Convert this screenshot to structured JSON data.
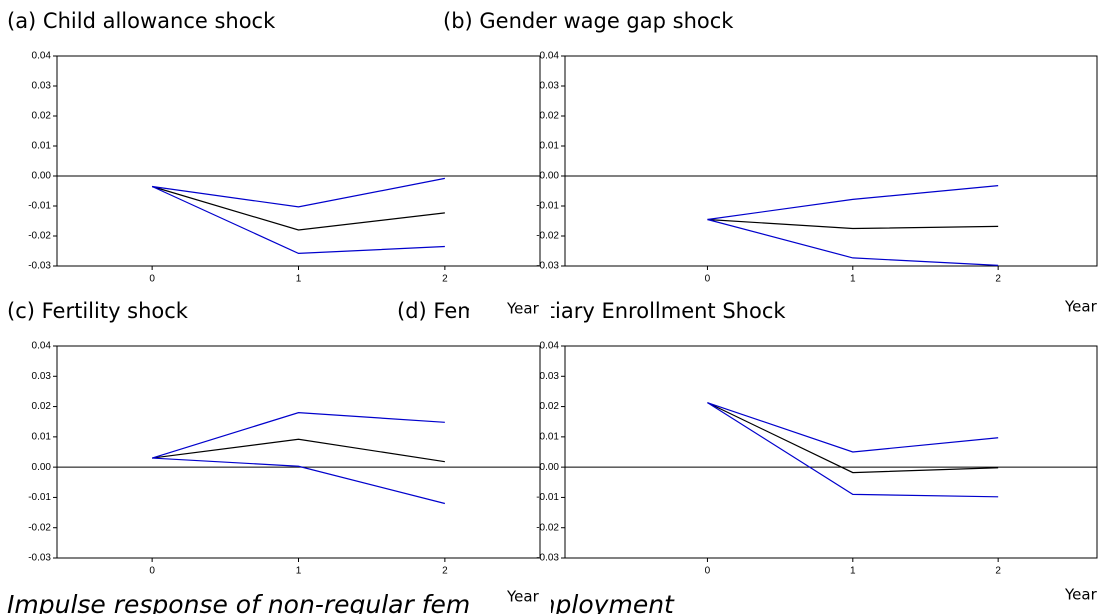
{
  "caption": "Impulse response of non-regular female employment",
  "chart_data": [
    {
      "type": "line",
      "title": "(a) Child allowance shock",
      "xlabel": "Year",
      "x": [
        0,
        1,
        2
      ],
      "xlim": [
        -0.65,
        2.65
      ],
      "xticks": [
        0,
        1,
        2
      ],
      "ylim": [
        -0.03,
        0.04
      ],
      "yticks": [
        0.04,
        0.03,
        0.02,
        0.01,
        {
          "value": 0,
          "label": "0.00"
        },
        -0.01,
        -0.02,
        -0.03
      ],
      "series": [
        {
          "color": "#000000",
          "values": [
            -0.0035,
            -0.018,
            -0.0123
          ]
        },
        {
          "color": "#0000cc",
          "values": [
            -0.0035,
            -0.0103,
            -0.0008
          ]
        },
        {
          "color": "#0000cc",
          "values": [
            -0.0035,
            -0.0258,
            -0.0235
          ]
        }
      ]
    },
    {
      "type": "line",
      "title": "(b) Gender wage gap shock",
      "xlabel": "Year",
      "x": [
        0,
        1,
        2
      ],
      "xlim": [
        -0.98,
        2.68
      ],
      "xticks": [
        0,
        1,
        2
      ],
      "ylim": [
        -0.03,
        0.04
      ],
      "yticks": [
        0.04,
        0.03,
        0.02,
        0.01,
        {
          "value": 0,
          "label": "0.00"
        },
        -0.01,
        -0.02,
        -0.03
      ],
      "series": [
        {
          "color": "#000000",
          "values": [
            -0.0145,
            -0.0175,
            -0.0168
          ]
        },
        {
          "color": "#0000cc",
          "values": [
            -0.0145,
            -0.0078,
            -0.0032
          ]
        },
        {
          "color": "#0000cc",
          "values": [
            -0.0145,
            -0.0273,
            -0.0298
          ]
        }
      ]
    },
    {
      "type": "line",
      "title": "(c) Fertility shock",
      "xlabel": "Year",
      "x": [
        0,
        1,
        2
      ],
      "xlim": [
        -0.65,
        2.65
      ],
      "xticks": [
        0,
        1,
        2
      ],
      "ylim": [
        -0.03,
        0.04
      ],
      "yticks": [
        0.04,
        0.03,
        0.02,
        0.01,
        {
          "value": 0,
          "label": "0.00"
        },
        -0.01,
        -0.02,
        -0.03
      ],
      "series": [
        {
          "color": "#000000",
          "values": [
            0.003,
            0.0092,
            0.0018
          ]
        },
        {
          "color": "#0000cc",
          "values": [
            0.003,
            0.018,
            0.0148
          ]
        },
        {
          "color": "#0000cc",
          "values": [
            0.003,
            0.0003,
            -0.012
          ]
        }
      ]
    },
    {
      "type": "line",
      "title": "(d) Female Tertiary Enrollment Shock",
      "xlabel": "Year",
      "x": [
        0,
        1,
        2
      ],
      "xlim": [
        -0.98,
        2.68
      ],
      "xticks": [
        0,
        1,
        2
      ],
      "ylim": [
        -0.03,
        0.04
      ],
      "yticks": [
        0.04,
        0.03,
        0.02,
        0.01,
        {
          "value": 0,
          "label": "0.00"
        },
        -0.01,
        -0.02,
        -0.03
      ],
      "series": [
        {
          "color": "#000000",
          "values": [
            0.0213,
            -0.0018,
            -0.0002
          ]
        },
        {
          "color": "#0000cc",
          "values": [
            0.0213,
            0.005,
            0.0097
          ]
        },
        {
          "color": "#0000cc",
          "values": [
            0.0213,
            -0.009,
            -0.0098
          ]
        }
      ]
    }
  ]
}
